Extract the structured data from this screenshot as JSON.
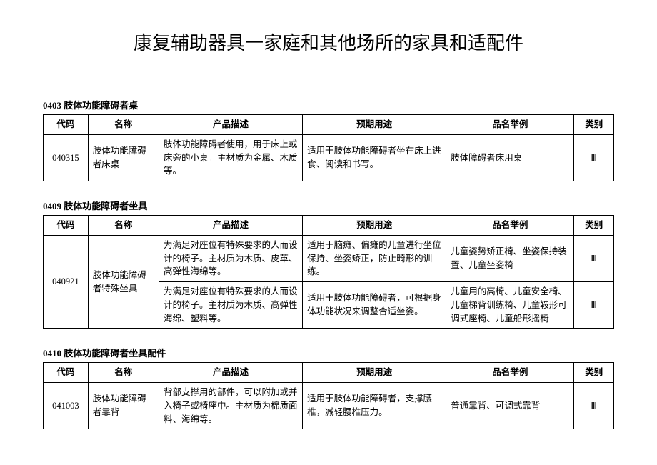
{
  "page_title": "康复辅助器具一家庭和其他场所的家具和适配件",
  "columns": [
    "代码",
    "名称",
    "产品描述",
    "预期用途",
    "品名举例",
    "类别"
  ],
  "col_widths_pct": [
    7,
    12,
    26,
    26,
    23,
    6
  ],
  "border_color": "#000000",
  "background_color": "#ffffff",
  "text_color": "#000000",
  "title_fontsize_pt": 26,
  "body_fontsize_pt": 12.5,
  "sections": [
    {
      "heading": "0403 肢体功能障碍者桌",
      "rows": [
        {
          "code": "040315",
          "code_rowspan": 1,
          "name": "肢体功能障碍者床桌",
          "name_rowspan": 1,
          "desc": "肢体功能障碍者使用，用于床上或床旁的小桌。主材质为金属、木质等。",
          "use": "适用于肢体功能障碍者坐在床上进食、阅读和书写。",
          "example": "肢体障碍者床用桌",
          "cat": "Ⅲ"
        }
      ]
    },
    {
      "heading": "0409 肢体功能障碍者坐具",
      "rows": [
        {
          "code": "040921",
          "code_rowspan": 2,
          "name": "肢体功能障碍者特殊坐具",
          "name_rowspan": 2,
          "desc": "为满足对座位有特殊要求的人而设计的椅子。主材质为木质、皮革、高弹性海绵等。",
          "use": "适用于脑瘫、偏瘫的儿童进行坐位保持、坐姿矫正，防止畸形的训练。",
          "example": "儿童姿势矫正椅、坐姿保持装置、儿童坐姿椅",
          "cat": "Ⅲ"
        },
        {
          "desc": "为满足对座位有特殊要求的人而设计的椅子。主材质为木质、高弹性海绵、塑料等。",
          "use": "适用于肢体功能障碍者，可根据身体功能状况来调整合适坐姿。",
          "example": "儿童用的高椅、儿童安全椅、儿童梯背训练椅、儿童鞍形可调式座椅、儿童船形摇椅",
          "cat": "Ⅲ"
        }
      ]
    },
    {
      "heading": "0410 肢体功能障碍者坐具配件",
      "rows": [
        {
          "code": "041003",
          "code_rowspan": 1,
          "name": "肢体功能障碍者靠背",
          "name_rowspan": 1,
          "desc": "背部支撑用的部件，可以附加或并入椅子或椅座中。主材质为棉质面料、海绵等。",
          "use": "适用于肢体功能障碍者，支撑腰椎，减轻腰椎压力。",
          "example": "普通靠背、可调式靠背",
          "cat": "Ⅲ"
        }
      ]
    }
  ]
}
